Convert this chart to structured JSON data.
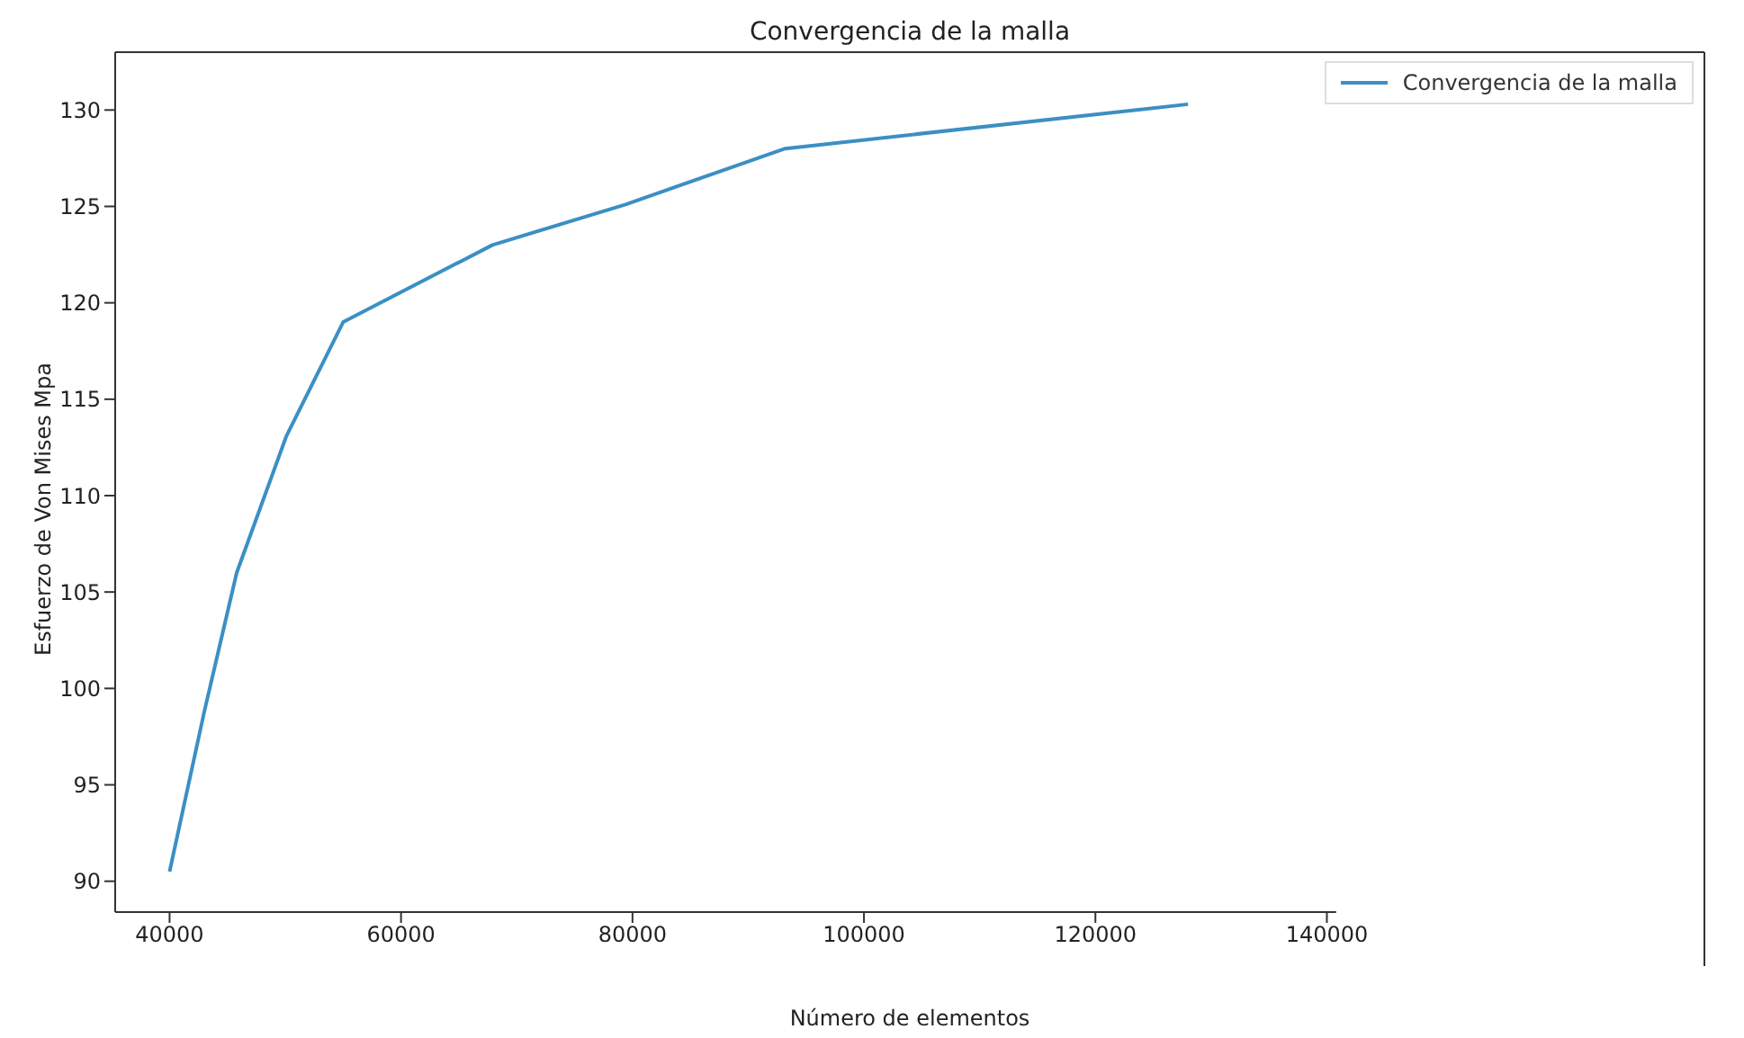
{
  "chart_data": {
    "type": "line",
    "title": "Convergencia de la malla",
    "xlabel": "Número de elementos",
    "ylabel": "Esfuerzo de Von Mises Mpa",
    "x": [
      40000,
      43000,
      45800,
      50100,
      55000,
      67900,
      79400,
      93200,
      128000
    ],
    "series": [
      {
        "name": "Convergencia de la malla",
        "color": "#3b8fc4",
        "values": [
          90.5,
          98.8,
          106.0,
          113.1,
          119.0,
          123.0,
          125.1,
          128.0,
          130.3
        ]
      }
    ],
    "xlim": [
      35300,
      140800
    ],
    "xticks": [
      40000,
      60000,
      80000,
      100000,
      120000,
      140000
    ],
    "ylim": [
      88.4,
      133.0
    ],
    "yticks": [
      90,
      95,
      100,
      105,
      110,
      115,
      120,
      125,
      130
    ],
    "grid": false,
    "legend": "top right",
    "marker": "none",
    "line_style": "solid"
  }
}
